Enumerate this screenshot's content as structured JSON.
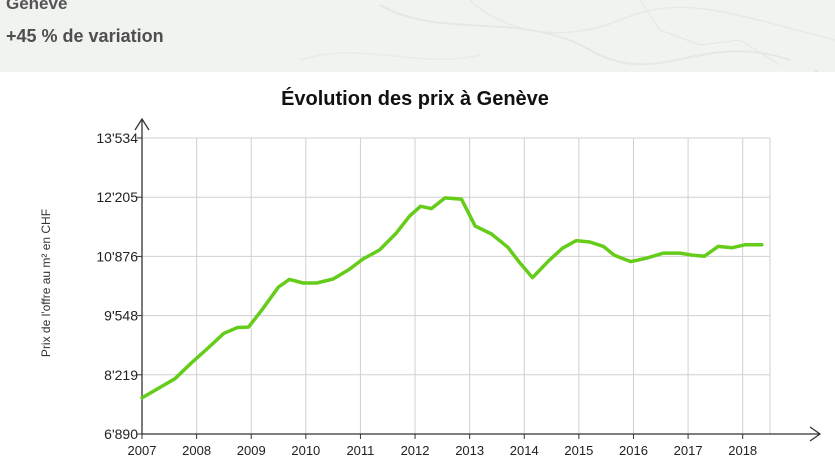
{
  "header": {
    "location": "Genève",
    "variation": "+45 % de variation"
  },
  "chart_data": {
    "type": "line",
    "title": "Évolution des prix à Genève",
    "xlabel": "",
    "ylabel": "Prix de l'offre au m² en CHF",
    "xlim": [
      2007,
      2019.5
    ],
    "ylim": [
      6890,
      13534
    ],
    "y_ticks": [
      6890,
      8219,
      9548,
      10876,
      12205,
      13534
    ],
    "y_tick_labels": [
      "6'890",
      "8'219",
      "9'548",
      "10'876",
      "12'205",
      "13'534"
    ],
    "x_ticks": [
      2007,
      2008,
      2009,
      2010,
      2011,
      2012,
      2013,
      2014,
      2015,
      2016,
      2017,
      2018
    ],
    "x_tick_labels": [
      "2007",
      "2008",
      "2009",
      "2010",
      "2011",
      "2012",
      "2013",
      "2014",
      "2015",
      "2016",
      "2017",
      "2018"
    ],
    "grid": true,
    "color": "#66cc1a",
    "series": [
      {
        "x": [
          2007.0,
          2007.25,
          2007.6,
          2007.9,
          2008.2,
          2008.5,
          2008.75,
          2008.95,
          2009.2,
          2009.5,
          2009.7,
          2009.95,
          2010.2,
          2010.5,
          2010.8,
          2011.05,
          2011.35,
          2011.65,
          2011.9,
          2012.1,
          2012.3,
          2012.55,
          2012.85,
          2013.1,
          2013.4,
          2013.7,
          2013.9,
          2014.15,
          2014.45,
          2014.7,
          2014.95,
          2015.2,
          2015.45,
          2015.65,
          2015.95,
          2016.25,
          2016.55,
          2016.85,
          2017.1,
          2017.3,
          2017.55,
          2017.8,
          2018.05,
          2018.35
        ],
        "y": [
          7700,
          7880,
          8130,
          8480,
          8810,
          9150,
          9280,
          9290,
          9680,
          10190,
          10360,
          10280,
          10280,
          10370,
          10590,
          10820,
          11020,
          11390,
          11780,
          12000,
          11950,
          12190,
          12160,
          11560,
          11380,
          11080,
          10760,
          10400,
          10780,
          11060,
          11230,
          11200,
          11100,
          10900,
          10760,
          10840,
          10950,
          10950,
          10900,
          10880,
          11100,
          11070,
          11140,
          11140
        ]
      }
    ]
  }
}
